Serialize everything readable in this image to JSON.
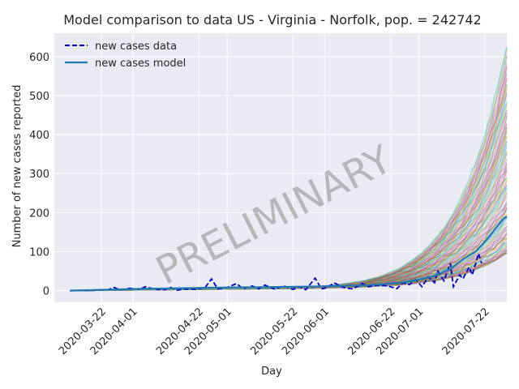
{
  "chart_data": {
    "type": "line",
    "title": "Model comparison to data US - Virginia - Norfolk, pop. = 242742",
    "xlabel": "Day",
    "ylabel": "Number of new cases reported",
    "x_range": [
      "2020-03-07",
      "2020-07-29"
    ],
    "ylim": [
      -30,
      660
    ],
    "y_ticks": [
      0,
      100,
      200,
      300,
      400,
      500,
      600
    ],
    "x_ticks": [
      "2020-03-22",
      "2020-04-01",
      "2020-04-22",
      "2020-05-01",
      "2020-05-22",
      "2020-06-01",
      "2020-06-22",
      "2020-07-01",
      "2020-07-22"
    ],
    "grid": true,
    "legend_position": "top-left",
    "watermark": "PRELIMINARY",
    "colors": {
      "plot_background": "#eaeaf2",
      "grid": "#ffffff",
      "data_line": "#0000cc",
      "model_line": "#1f77b4"
    },
    "series": [
      {
        "name": "new cases data",
        "style": "dashed",
        "points": [
          [
            "2020-03-12",
            0
          ],
          [
            "2020-03-16",
            0
          ],
          [
            "2020-03-20",
            1
          ],
          [
            "2020-03-24",
            2
          ],
          [
            "2020-03-26",
            8
          ],
          [
            "2020-03-28",
            2
          ],
          [
            "2020-03-31",
            6
          ],
          [
            "2020-04-03",
            3
          ],
          [
            "2020-04-05",
            10
          ],
          [
            "2020-04-08",
            3
          ],
          [
            "2020-04-11",
            2
          ],
          [
            "2020-04-13",
            8
          ],
          [
            "2020-04-15",
            1
          ],
          [
            "2020-04-18",
            4
          ],
          [
            "2020-04-21",
            3
          ],
          [
            "2020-04-24",
            8
          ],
          [
            "2020-04-26",
            30
          ],
          [
            "2020-04-28",
            4
          ],
          [
            "2020-05-01",
            8
          ],
          [
            "2020-05-04",
            18
          ],
          [
            "2020-05-06",
            5
          ],
          [
            "2020-05-09",
            12
          ],
          [
            "2020-05-11",
            4
          ],
          [
            "2020-05-13",
            14
          ],
          [
            "2020-05-16",
            4
          ],
          [
            "2020-05-19",
            12
          ],
          [
            "2020-05-22",
            3
          ],
          [
            "2020-05-24",
            10
          ],
          [
            "2020-05-26",
            2
          ],
          [
            "2020-05-29",
            32
          ],
          [
            "2020-05-31",
            4
          ],
          [
            "2020-06-02",
            8
          ],
          [
            "2020-06-04",
            20
          ],
          [
            "2020-06-07",
            8
          ],
          [
            "2020-06-10",
            4
          ],
          [
            "2020-06-13",
            18
          ],
          [
            "2020-06-15",
            10
          ],
          [
            "2020-06-18",
            14
          ],
          [
            "2020-06-21",
            12
          ],
          [
            "2020-06-24",
            5
          ],
          [
            "2020-06-26",
            20
          ],
          [
            "2020-06-28",
            15
          ],
          [
            "2020-06-30",
            28
          ],
          [
            "2020-07-02",
            10
          ],
          [
            "2020-07-04",
            35
          ],
          [
            "2020-07-06",
            20
          ],
          [
            "2020-07-07",
            50
          ],
          [
            "2020-07-09",
            25
          ],
          [
            "2020-07-11",
            70
          ],
          [
            "2020-07-12",
            10
          ],
          [
            "2020-07-14",
            40
          ],
          [
            "2020-07-15",
            30
          ],
          [
            "2020-07-17",
            60
          ],
          [
            "2020-07-18",
            40
          ],
          [
            "2020-07-20",
            95
          ],
          [
            "2020-07-21",
            70
          ]
        ]
      },
      {
        "name": "new cases model",
        "style": "solid",
        "points": [
          [
            "2020-03-12",
            0
          ],
          [
            "2020-03-22",
            2
          ],
          [
            "2020-04-01",
            4
          ],
          [
            "2020-04-15",
            6
          ],
          [
            "2020-05-01",
            8
          ],
          [
            "2020-05-15",
            9
          ],
          [
            "2020-06-01",
            11
          ],
          [
            "2020-06-15",
            14
          ],
          [
            "2020-06-25",
            20
          ],
          [
            "2020-07-01",
            28
          ],
          [
            "2020-07-06",
            38
          ],
          [
            "2020-07-11",
            55
          ],
          [
            "2020-07-15",
            80
          ],
          [
            "2020-07-19",
            100
          ],
          [
            "2020-07-22",
            125
          ],
          [
            "2020-07-25",
            155
          ],
          [
            "2020-07-28",
            185
          ],
          [
            "2020-07-29",
            190
          ]
        ]
      }
    ],
    "ensemble": {
      "count": 60,
      "start_date": "2020-03-12",
      "end_date": "2020-07-29",
      "final_range": [
        95,
        630
      ],
      "palette": [
        "#1f77b4",
        "#ff7f0e",
        "#2ca02c",
        "#d62728",
        "#9467bd",
        "#8c564b",
        "#e377c2",
        "#7f7f7f",
        "#bcbd22",
        "#17becf"
      ]
    }
  }
}
